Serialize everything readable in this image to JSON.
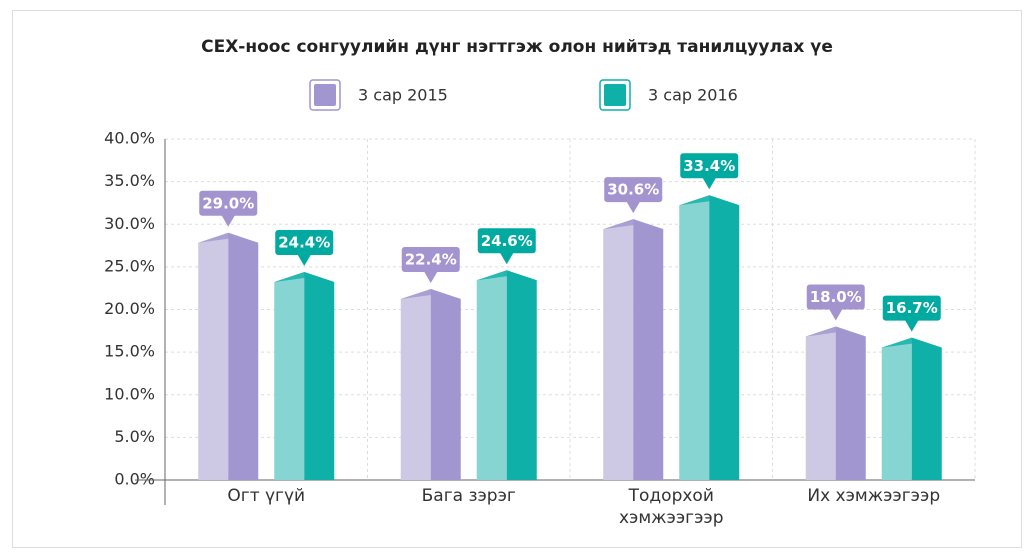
{
  "chart_data": {
    "type": "bar",
    "title": "СЕХ-ноос сонгуулийн дүнг нэгтгэж олон нийтэд танилцуулах үе",
    "categories": [
      "Огт үгүй",
      "Бага зэрэг",
      "Тодорхой хэмжээгээр",
      "Их хэмжээгээр"
    ],
    "series": [
      {
        "name": "3 сар 2015",
        "color": "#a196cf",
        "light_color": "#cdc8e4",
        "label_color": "#a393cf",
        "values": [
          29.0,
          22.4,
          30.6,
          18.0
        ],
        "value_labels": [
          "29.0%",
          "22.4%",
          "30.6%",
          "18.0%"
        ]
      },
      {
        "name": "3 сар 2016",
        "color": "#0fb0a8",
        "light_color": "#86d5d2",
        "label_color": "#00aaa0",
        "values": [
          24.4,
          24.6,
          33.4,
          16.7
        ],
        "value_labels": [
          "24.4%",
          "24.6%",
          "33.4%",
          "16.7%"
        ]
      }
    ],
    "ylim": [
      0,
      40
    ],
    "yticks": [
      {
        "value": 0,
        "label": "0.0%"
      },
      {
        "value": 5,
        "label": "5.0%"
      },
      {
        "value": 10,
        "label": "10.0%"
      },
      {
        "value": 15,
        "label": "15.0%"
      },
      {
        "value": 20,
        "label": "20.0%"
      },
      {
        "value": 25,
        "label": "25.0%"
      },
      {
        "value": 30,
        "label": "30.0%"
      },
      {
        "value": 35,
        "label": "35.0%"
      },
      {
        "value": 40,
        "label": "40.0%"
      }
    ],
    "grid": true,
    "legend": "top"
  }
}
